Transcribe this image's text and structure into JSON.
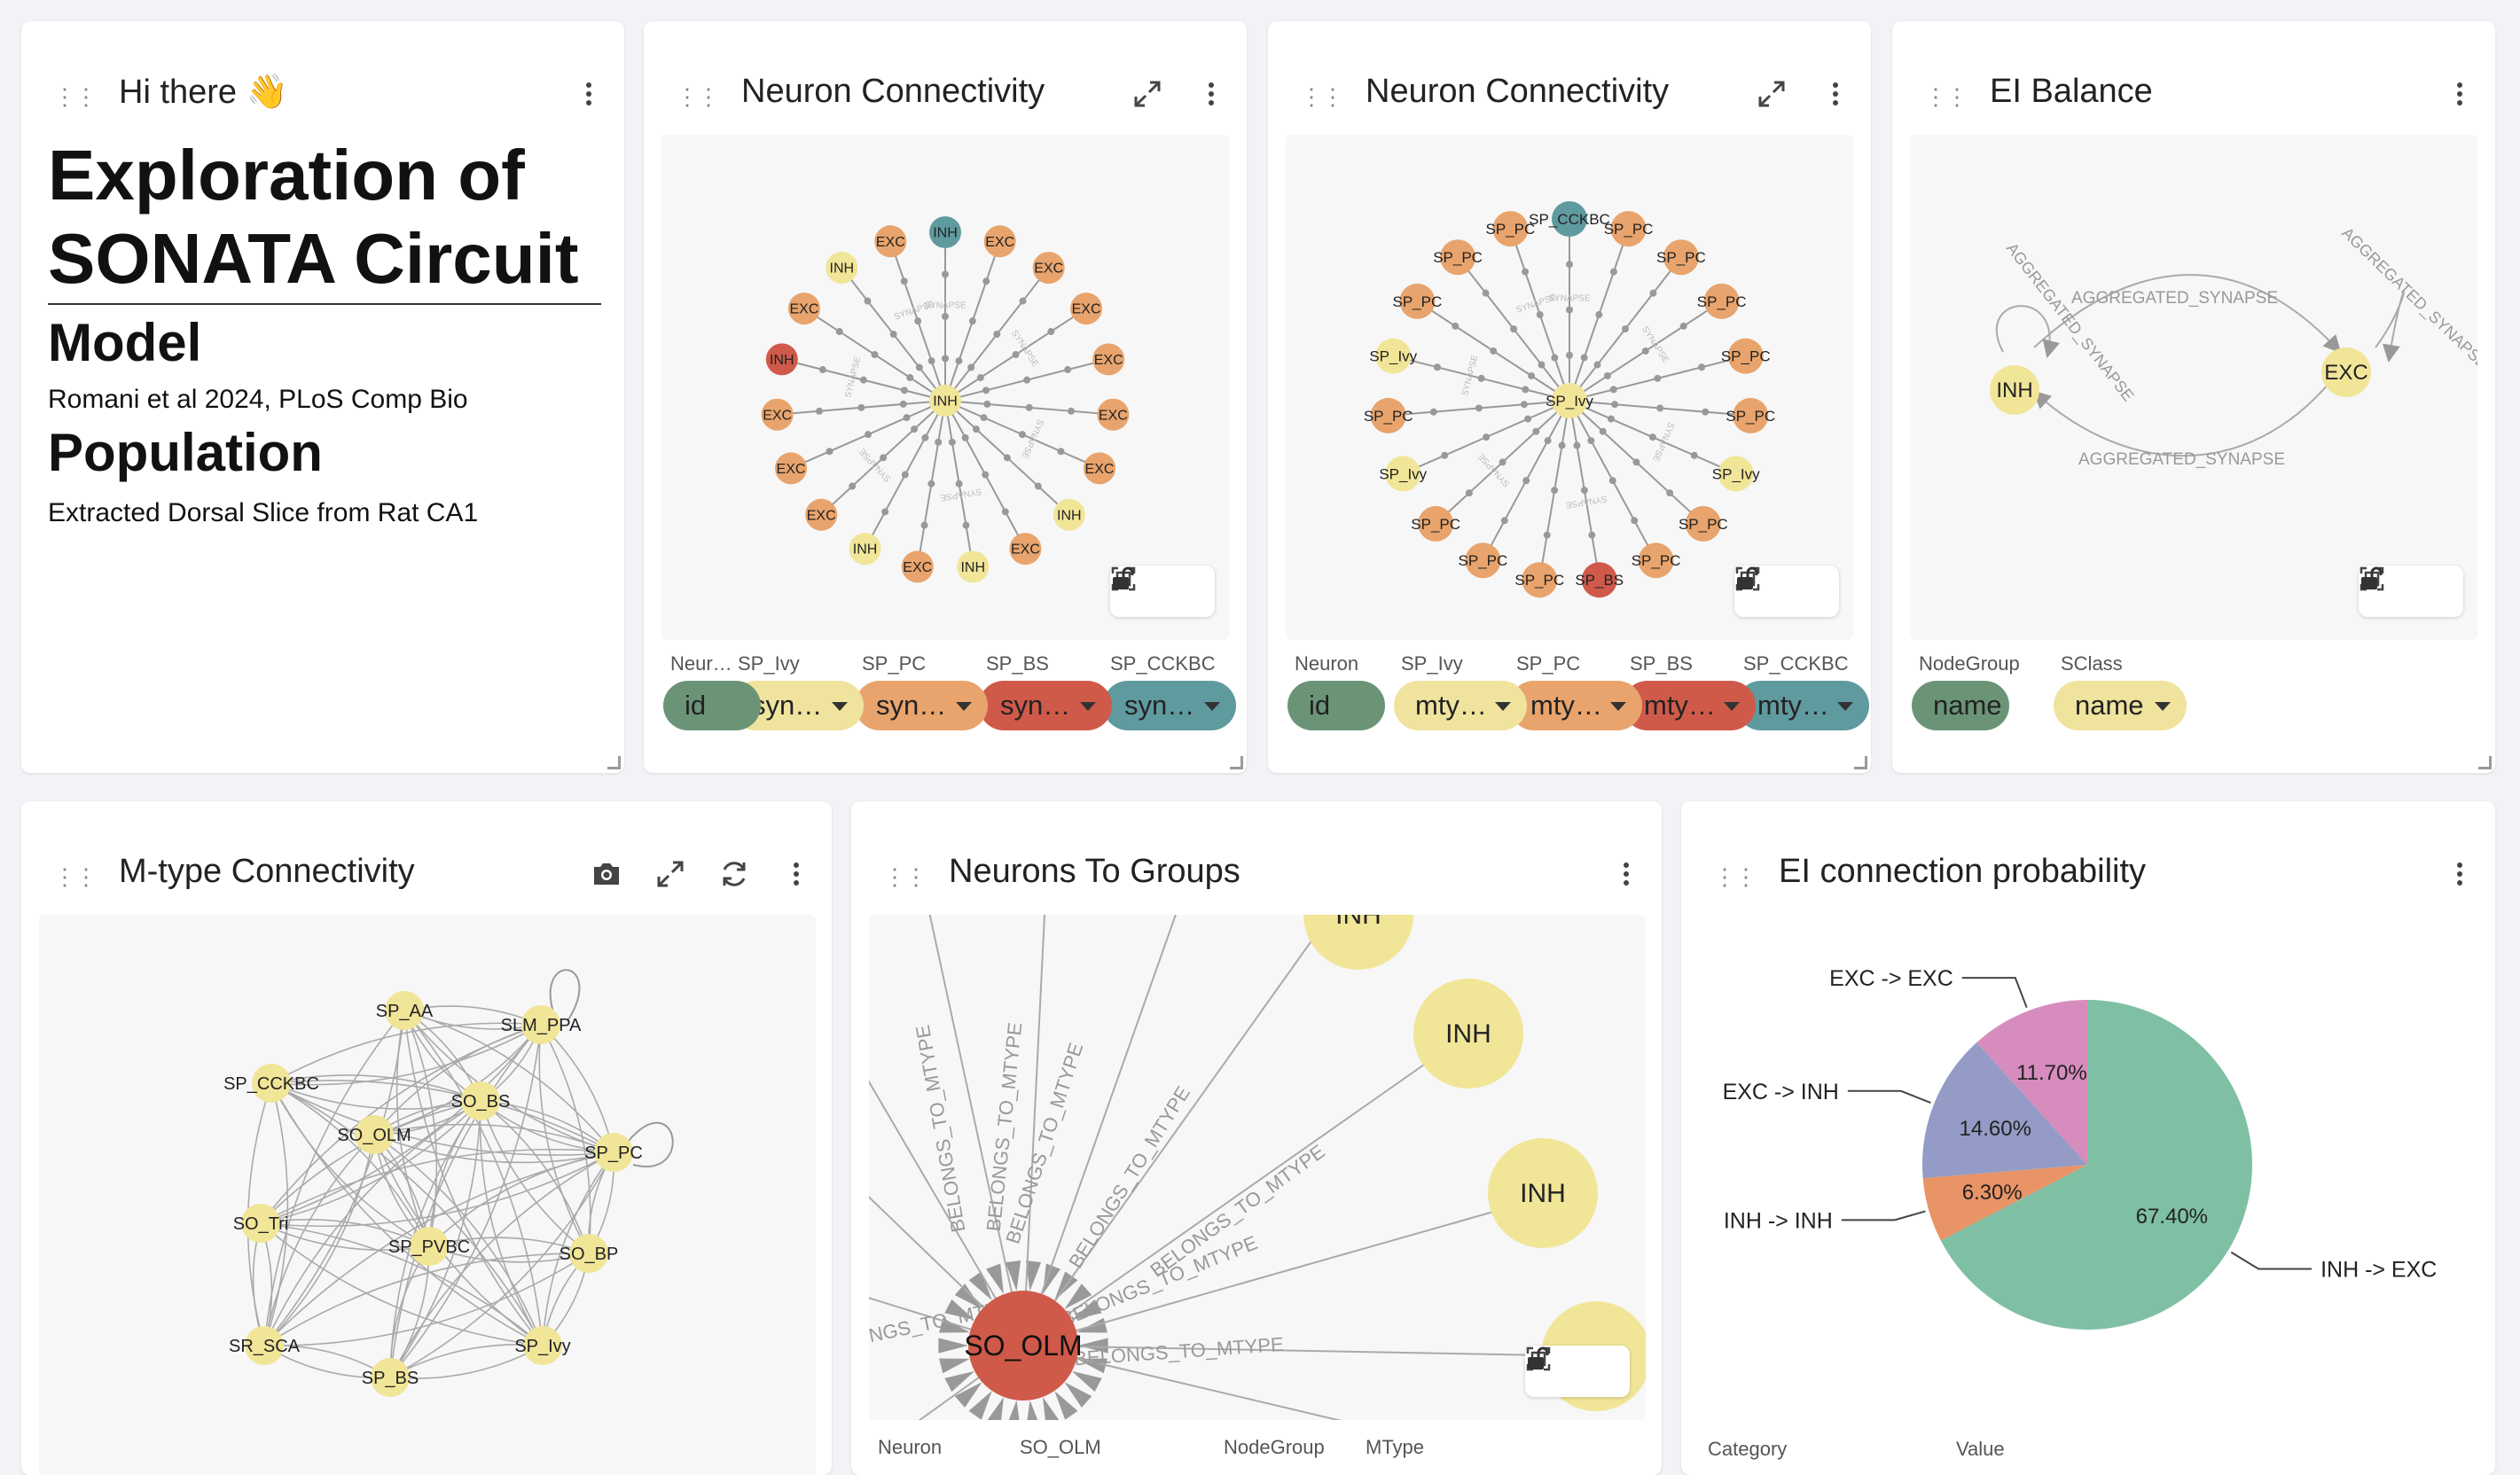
{
  "intro": {
    "title": "Hi there 👋",
    "heading1": "Exploration of",
    "heading2": "SONATA Circuit",
    "heading3": "Model",
    "citation": "Romani et al 2024, PLoS Comp Bio",
    "heading4": "Population",
    "description": "Extracted Dorsal Slice from Rat CA1"
  },
  "nc1": {
    "title": "Neuron Connectivity",
    "columns": [
      "Neur…",
      "SP_Ivy",
      "SP_PC",
      "SP_BS",
      "SP_CCKBC"
    ],
    "pills": [
      "id",
      "syn…",
      "syn…",
      "syn…",
      "syn…"
    ],
    "nodes": [
      "INH",
      "EXC",
      "EXC",
      "EXC",
      "EXC",
      "EXC",
      "EXC",
      "INH",
      "EXC",
      "INH",
      "EXC",
      "INH",
      "EXC",
      "EXC",
      "EXC",
      "INH",
      "EXC",
      "INH",
      "EXC"
    ],
    "center": "INH",
    "edge_label": "SYNAPSE"
  },
  "nc2": {
    "title": "Neuron Connectivity",
    "columns": [
      "Neuron",
      "SP_Ivy",
      "SP_PC",
      "SP_BS",
      "SP_CCKBC"
    ],
    "pills": [
      "id",
      "mty…",
      "mty…",
      "mty…",
      "mty…"
    ],
    "nodes": [
      "SP_CCKBC",
      "SP_PC",
      "SP_PC",
      "SP_PC",
      "SP_PC",
      "SP_PC",
      "SP_Ivy",
      "SP_PC",
      "SP_PC",
      "SP_BS",
      "SP_PC",
      "SP_PC",
      "SP_PC",
      "SP_Ivy",
      "SP_PC",
      "SP_Ivy",
      "SP_PC",
      "SP_PC",
      "SP_PC"
    ],
    "center": "SP_Ivy",
    "edge_label": "SYNAPSE"
  },
  "ei": {
    "title": "EI Balance",
    "columns": [
      "NodeGroup",
      "SClass"
    ],
    "pills": [
      "name",
      "name"
    ],
    "node_inh": "INH",
    "node_exc": "EXC",
    "edge_label": "AGGREGATED_SYNAPSE"
  },
  "mtype": {
    "title": "M-type Connectivity",
    "nodes": [
      "SP_AA",
      "SLM_PPA",
      "SP_CCKBC",
      "SO_BS",
      "SO_OLM",
      "SP_PC",
      "SO_Tri",
      "SP_PVBC",
      "SO_BP",
      "SR_SCA",
      "SP_BS",
      "SP_Ivy"
    ]
  },
  "ntg": {
    "title": "Neurons To Groups",
    "center": "SO_OLM",
    "groups": [
      "INH",
      "INH",
      "INH"
    ],
    "edge_label": "BELONGS_TO_MTYPE",
    "columns": [
      "Neuron",
      "SO_OLM",
      "NodeGroup",
      "MType"
    ]
  },
  "pie": {
    "title": "EI connection probability",
    "footer_columns": [
      "Category",
      "Value"
    ]
  },
  "chart_data": {
    "type": "pie",
    "title": "EI connection probability",
    "categories": [
      "INH -> EXC",
      "INH -> INH",
      "EXC -> INH",
      "EXC -> EXC"
    ],
    "values": [
      67.4,
      6.3,
      14.6,
      11.7
    ],
    "value_labels": [
      "67.40%",
      "6.30%",
      "14.60%",
      "11.70%"
    ],
    "colors": [
      "#7fc0a4",
      "#e99467",
      "#939bc6",
      "#d68cbd"
    ]
  },
  "colors": {
    "exc": "#e8a46c",
    "inh": "#f1e598",
    "bs": "#cf5a4a",
    "cck": "#5f9a9f",
    "pill_green": "#6b9477",
    "pill_yellow": "#efe39d",
    "pill_orange": "#e8a46c",
    "pill_red": "#cf5a4a",
    "pill_teal": "#5f9a9f"
  }
}
